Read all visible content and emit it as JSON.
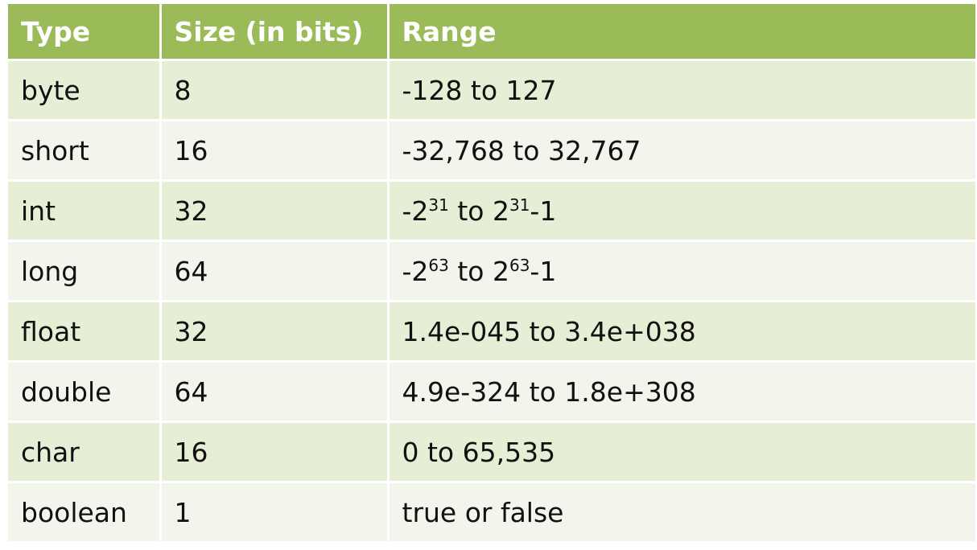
{
  "table": {
    "headers": [
      "Type",
      "Size (in bits)",
      "Range"
    ],
    "rows": [
      {
        "type": "byte",
        "size": "8",
        "range": "-128 to 127"
      },
      {
        "type": "short",
        "size": "16",
        "range": "-32,768 to 32,767"
      },
      {
        "type": "int",
        "size": "32",
        "range_parts": [
          "-2",
          "31",
          " to 2",
          "31",
          "-1"
        ]
      },
      {
        "type": "long",
        "size": "64",
        "range_parts": [
          "-2",
          "63",
          " to 2",
          "63",
          "-1"
        ]
      },
      {
        "type": "float",
        "size": "32",
        "range": "1.4e-045 to 3.4e+038"
      },
      {
        "type": "double",
        "size": "64",
        "range": "4.9e-324 to 1.8e+308"
      },
      {
        "type": "char",
        "size": "16",
        "range": "0 to 65,535"
      },
      {
        "type": "boolean",
        "size": "1",
        "range": "true or false"
      }
    ]
  },
  "colors": {
    "header_bg": "#9bbb59",
    "row_odd_bg": "#e6eed5",
    "row_even_bg": "#f2f5ec",
    "header_text": "#ffffff"
  }
}
